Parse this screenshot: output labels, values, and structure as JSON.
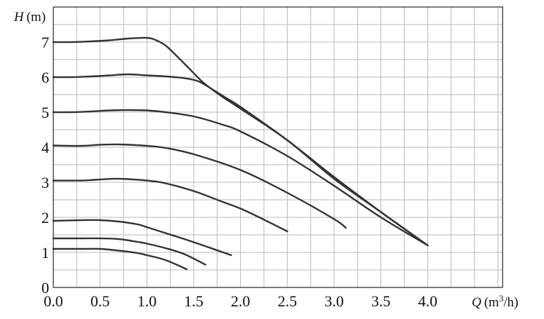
{
  "chart_data": {
    "type": "line",
    "title": "",
    "xlabel": "Q",
    "xlabel_unit": "(m3/h)",
    "xlabel_unit_base": "(m",
    "xlabel_unit_sup": "3",
    "xlabel_unit_tail": "/h)",
    "ylabel": "H",
    "ylabel_unit": "(m)",
    "xlim": [
      0,
      4.8
    ],
    "ylim": [
      0,
      8
    ],
    "xticks": [
      "0.0",
      "0.5",
      "1.0",
      "1.5",
      "2.0",
      "2.5",
      "3.0",
      "3.5",
      "4.0"
    ],
    "yticks": [
      "0",
      "1",
      "2",
      "3",
      "4",
      "5",
      "6",
      "7"
    ],
    "grid": true,
    "line_color": "#333333",
    "series": [
      {
        "x": [
          0,
          0.2,
          0.4,
          0.6,
          0.8,
          1.0,
          1.1,
          1.2,
          1.3,
          1.45,
          1.6,
          1.8,
          2.0,
          2.5,
          3.0,
          3.5,
          4.0
        ],
        "y": [
          7.0,
          7.0,
          7.02,
          7.05,
          7.1,
          7.12,
          7.05,
          6.9,
          6.65,
          6.25,
          5.85,
          5.45,
          5.1,
          4.2,
          3.1,
          2.15,
          1.2
        ]
      },
      {
        "x": [
          0,
          0.2,
          0.4,
          0.6,
          0.8,
          1.0,
          1.2,
          1.4,
          1.55,
          1.7,
          1.85,
          2.0,
          2.5,
          3.0,
          3.5,
          4.0
        ],
        "y": [
          6.0,
          6.0,
          6.02,
          6.05,
          6.08,
          6.05,
          6.02,
          5.97,
          5.88,
          5.65,
          5.4,
          5.15,
          4.2,
          3.15,
          2.15,
          1.2
        ]
      },
      {
        "x": [
          0,
          0.2,
          0.4,
          0.6,
          0.8,
          1.0,
          1.2,
          1.5,
          1.8,
          2.0,
          2.5,
          3.0,
          3.5,
          4.0
        ],
        "y": [
          5.0,
          5.0,
          5.02,
          5.05,
          5.06,
          5.05,
          5.0,
          4.88,
          4.65,
          4.45,
          3.75,
          2.9,
          2.0,
          1.2
        ]
      },
      {
        "x": [
          0,
          0.3,
          0.5,
          0.7,
          1.0,
          1.2,
          1.5,
          2.0,
          2.5,
          3.0,
          3.125
        ],
        "y": [
          4.05,
          4.04,
          4.07,
          4.08,
          4.04,
          3.98,
          3.8,
          3.35,
          2.7,
          1.95,
          1.7
        ]
      },
      {
        "x": [
          0,
          0.3,
          0.5,
          0.7,
          1.0,
          1.2,
          1.5,
          1.8,
          2.0,
          2.2,
          2.5
        ],
        "y": [
          3.05,
          3.05,
          3.08,
          3.1,
          3.05,
          2.97,
          2.75,
          2.45,
          2.25,
          2.0,
          1.6
        ]
      },
      {
        "x": [
          0,
          0.3,
          0.5,
          0.7,
          0.9,
          1.0,
          1.2,
          1.4,
          1.6,
          1.9
        ],
        "y": [
          1.9,
          1.92,
          1.92,
          1.88,
          1.8,
          1.72,
          1.55,
          1.38,
          1.2,
          0.92
        ]
      },
      {
        "x": [
          0,
          0.3,
          0.5,
          0.7,
          0.9,
          1.0,
          1.2,
          1.4,
          1.625
        ],
        "y": [
          1.4,
          1.4,
          1.4,
          1.38,
          1.3,
          1.25,
          1.12,
          0.95,
          0.65
        ]
      },
      {
        "x": [
          0,
          0.3,
          0.5,
          0.7,
          0.9,
          1.0,
          1.2,
          1.425
        ],
        "y": [
          1.1,
          1.1,
          1.1,
          1.05,
          0.98,
          0.92,
          0.78,
          0.52
        ]
      }
    ]
  }
}
